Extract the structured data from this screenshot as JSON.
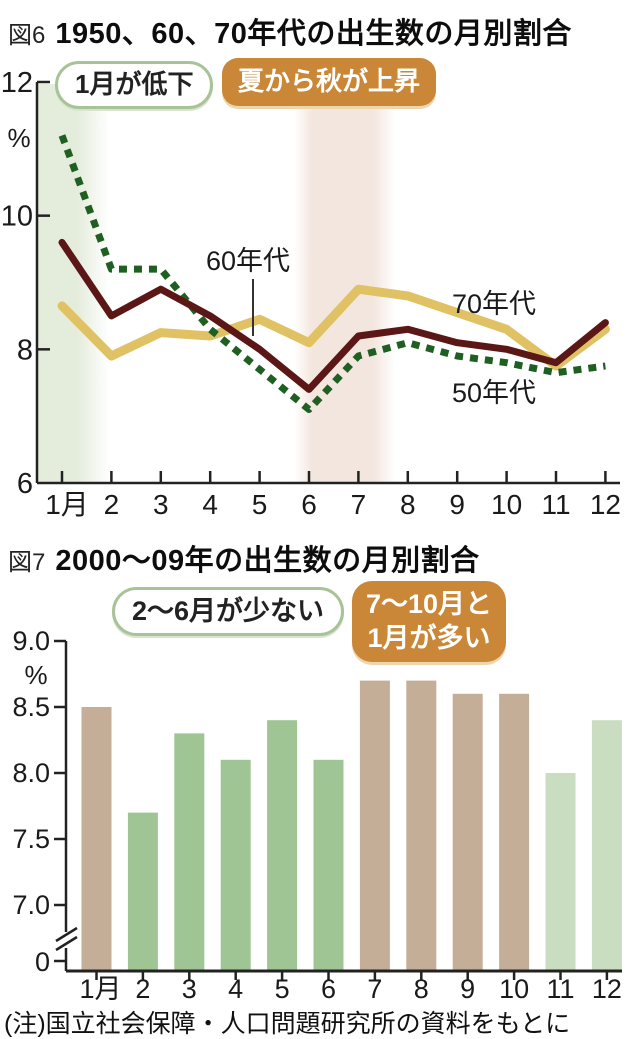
{
  "note": "(注)国立社会保障・人口問題研究所の資料をもとに",
  "palette": {
    "callout_fill": "#c98737",
    "callout_outline_border": "#a9c398",
    "axis_color": "#222222"
  },
  "chart_data": [
    {
      "type": "line",
      "fig_label": "図6",
      "title": "1950、60、70年代の出生数の月別割合",
      "ylabel": "%",
      "ylim": [
        6,
        12
      ],
      "y_ticks": [
        "12",
        "10",
        "8",
        "6"
      ],
      "categories": [
        "1月",
        "2",
        "3",
        "4",
        "5",
        "6",
        "7",
        "8",
        "9",
        "10",
        "11",
        "12"
      ],
      "grid": false,
      "legend_position": "inline-labels",
      "series": [
        {
          "name": "50年代",
          "color": "#1f5f22",
          "dash": true,
          "values": [
            11.2,
            9.2,
            9.2,
            8.3,
            7.7,
            7.1,
            7.9,
            8.1,
            7.9,
            7.8,
            7.65,
            7.75
          ]
        },
        {
          "name": "60年代",
          "color": "#5b1616",
          "dash": false,
          "values": [
            9.6,
            8.5,
            8.9,
            8.5,
            8.0,
            7.4,
            8.2,
            8.3,
            8.1,
            8.0,
            7.8,
            8.4
          ]
        },
        {
          "name": "70年代",
          "color": "#e0c264",
          "dash": false,
          "values": [
            8.65,
            7.9,
            8.25,
            8.2,
            8.45,
            8.1,
            8.9,
            8.8,
            8.55,
            8.3,
            7.75,
            8.3
          ]
        }
      ],
      "annotations": [
        {
          "text": "1月が低下",
          "style": "outline"
        },
        {
          "text": "夏から秋が上昇",
          "style": "filled"
        }
      ],
      "bands": [
        {
          "label": "january-low",
          "from": 0.5,
          "to": 1.95,
          "color": "#e4ecdc"
        },
        {
          "label": "summer-autumn-rise",
          "from": 5.7,
          "to": 7.75,
          "color": "#f3e6de"
        }
      ]
    },
    {
      "type": "bar",
      "fig_label": "図7",
      "title": "2000〜09年の出生数の月別割合",
      "ylabel": "%",
      "ylim": [
        6.7,
        9.0
      ],
      "axis_break_to_zero": true,
      "y_ticks": [
        "9.0",
        "8.5",
        "8.0",
        "7.5",
        "7.0",
        "0"
      ],
      "categories": [
        "1月",
        "2",
        "3",
        "4",
        "5",
        "6",
        "7",
        "8",
        "9",
        "10",
        "11",
        "12"
      ],
      "values": [
        8.5,
        7.7,
        8.3,
        8.1,
        8.4,
        8.1,
        8.7,
        8.7,
        8.6,
        8.6,
        8.0,
        8.4
      ],
      "bar_colors": [
        "tan",
        "green",
        "green",
        "green",
        "green",
        "green",
        "tan",
        "tan",
        "tan",
        "tan",
        "light",
        "light"
      ],
      "colors": {
        "tan": "#c4ae97",
        "green": "#9fc595",
        "light": "#c9dec1"
      },
      "annotations": [
        {
          "text": "2〜6月が少ない",
          "style": "outline"
        },
        {
          "text": "7〜10月と1月が多い",
          "style": "filled",
          "lines": [
            "7〜10月と",
            "1月が多い"
          ]
        }
      ]
    }
  ]
}
